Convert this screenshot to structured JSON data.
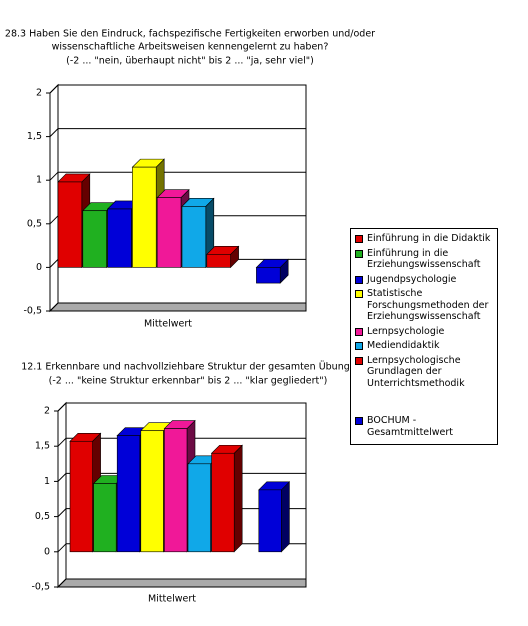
{
  "chart_data": [
    {
      "type": "bar",
      "title": [
        "28.3 Haben Sie den Eindruck, fachspezifische Fertigkeiten erworben und/oder",
        "wissenschaftliche Arbeitsweisen kennengelernt zu haben?"
      ],
      "subtitle": "(-2 ... \"nein, überhaupt nicht\" bis 2 ... \"ja, sehr viel\")",
      "categories": [
        "Mittelwert"
      ],
      "ylim": [
        -0.5,
        2
      ],
      "yticks": [
        {
          "value": -0.5,
          "label": "-0,5"
        },
        0,
        {
          "value": 0.5,
          "label": "0,5"
        },
        1,
        {
          "value": 1.5,
          "label": "1,5"
        },
        2
      ],
      "grid": true,
      "series": [
        {
          "name": "Einführung in die Didaktik",
          "color": "#e00000",
          "values": [
            0.98
          ]
        },
        {
          "name": "Einführung in die Erziehungswissenschaft",
          "color": "#20b020",
          "values": [
            0.65
          ]
        },
        {
          "name": "Jugendpsychologie",
          "color": "#0000d8",
          "values": [
            0.67
          ]
        },
        {
          "name": "Statistische Forschungsmethoden der Erziehungswissenschaft",
          "color": "#ffff00",
          "values": [
            1.15
          ]
        },
        {
          "name": "Lernpsychologie",
          "color": "#f01898",
          "values": [
            0.8
          ]
        },
        {
          "name": "Mediendidaktik",
          "color": "#10a8e8",
          "values": [
            0.7
          ]
        },
        {
          "name": "Lernpsychologische Grundlagen der Unterrichtsmethodik",
          "color": "#e00000",
          "values": [
            0.15
          ]
        },
        {
          "name": "BOCHUM - Gesamtmittelwert",
          "color": "#0000d8",
          "values": [
            -0.18
          ]
        }
      ]
    },
    {
      "type": "bar",
      "title": [
        "12.1 Erkennbare und nachvollziehbare Struktur der gesamten Übung?"
      ],
      "subtitle": "(-2 ... \"keine Struktur erkennbar\" bis 2 ... \"klar gegliedert\")",
      "categories": [
        "Mittelwert"
      ],
      "ylim": [
        -0.5,
        2
      ],
      "yticks": [
        {
          "value": -0.5,
          "label": "-0,5"
        },
        0,
        {
          "value": 0.5,
          "label": "0,5"
        },
        1,
        {
          "value": 1.5,
          "label": "1,5"
        },
        2
      ],
      "grid": true,
      "series": [
        {
          "color": "#e00000",
          "values": [
            1.57
          ]
        },
        {
          "color": "#20b020",
          "values": [
            0.97
          ]
        },
        {
          "color": "#0000d8",
          "values": [
            1.65
          ]
        },
        {
          "color": "#ffff00",
          "values": [
            1.72
          ]
        },
        {
          "color": "#f01898",
          "values": [
            1.75
          ]
        },
        {
          "color": "#10a8e8",
          "values": [
            1.25
          ]
        },
        {
          "color": "#e00000",
          "values": [
            1.4
          ]
        },
        {
          "color": "#0000d8",
          "values": [
            0.88
          ]
        }
      ]
    }
  ]
}
